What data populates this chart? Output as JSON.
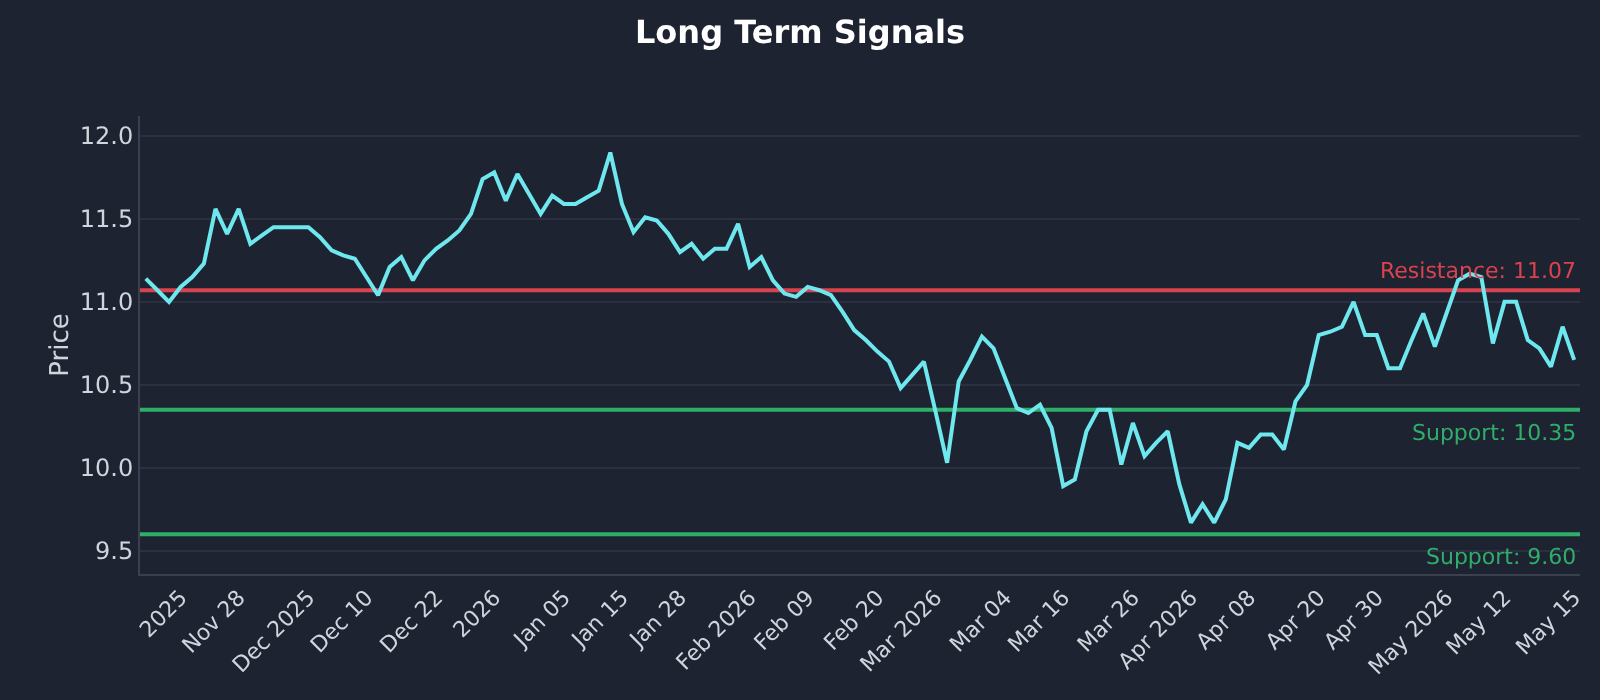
{
  "chart_data": {
    "type": "line",
    "title": "Long Term Signals",
    "ylabel": "Price",
    "categories": [
      null,
      null,
      null,
      "2025",
      null,
      null,
      null,
      null,
      "Nov 28",
      null,
      null,
      null,
      null,
      null,
      "Dec 2025",
      null,
      null,
      null,
      null,
      "Dec 10",
      null,
      null,
      null,
      null,
      null,
      "Dec 22",
      null,
      null,
      null,
      null,
      "2026",
      null,
      null,
      null,
      null,
      null,
      "Jan 05",
      null,
      null,
      null,
      null,
      "Jan 15",
      null,
      null,
      null,
      null,
      "Jan 28",
      null,
      null,
      null,
      null,
      null,
      "Feb 2026",
      null,
      null,
      null,
      null,
      "Feb 09",
      null,
      null,
      null,
      null,
      null,
      "Feb 20",
      null,
      null,
      null,
      null,
      "Mar 2026",
      null,
      null,
      null,
      null,
      null,
      "Mar 04",
      null,
      null,
      null,
      null,
      "Mar 16",
      null,
      null,
      null,
      null,
      null,
      "Mar 26",
      null,
      null,
      null,
      null,
      "Apr 2026",
      null,
      null,
      null,
      null,
      "Apr 08",
      null,
      null,
      null,
      null,
      null,
      "Apr 20",
      null,
      null,
      null,
      null,
      "Apr 30",
      null,
      null,
      null,
      null,
      null,
      "May 2026",
      null,
      null,
      null,
      null,
      "May 12",
      null,
      null,
      null,
      null,
      null,
      "May 15"
    ],
    "series": [
      {
        "color": "#6ee7ee",
        "values": [
          11.14,
          11.07,
          11.0,
          11.09,
          11.15,
          11.23,
          11.56,
          11.41,
          11.56,
          11.35,
          11.4,
          11.45,
          11.45,
          11.45,
          11.45,
          11.39,
          11.31,
          11.28,
          11.26,
          11.15,
          11.04,
          11.21,
          11.27,
          11.13,
          11.25,
          11.32,
          11.37,
          11.43,
          11.53,
          11.74,
          11.78,
          11.61,
          11.77,
          11.65,
          11.53,
          11.64,
          11.59,
          11.59,
          11.63,
          11.67,
          11.9,
          11.59,
          11.42,
          11.51,
          11.49,
          11.41,
          11.3,
          11.35,
          11.26,
          11.32,
          11.32,
          11.47,
          11.21,
          11.27,
          11.13,
          11.05,
          11.03,
          11.09,
          11.07,
          11.04,
          10.94,
          10.83,
          10.77,
          10.7,
          10.64,
          10.48,
          10.56,
          10.64,
          10.34,
          10.03,
          10.52,
          10.65,
          10.79,
          10.72,
          10.54,
          10.36,
          10.33,
          10.38,
          10.24,
          9.89,
          9.93,
          10.22,
          10.35,
          10.35,
          10.02,
          10.27,
          10.07,
          10.15,
          10.22,
          9.9,
          9.67,
          9.78,
          9.67,
          9.81,
          10.15,
          10.12,
          10.2,
          10.2,
          10.11,
          10.4,
          10.5,
          10.8,
          10.82,
          10.85,
          11.0,
          10.8,
          10.8,
          10.6,
          10.6,
          10.77,
          10.93,
          10.73,
          10.93,
          11.13,
          11.17,
          11.15,
          10.75,
          11.0,
          11.0,
          10.77,
          10.72,
          10.61,
          10.85,
          10.65
        ]
      }
    ],
    "ylim": [
      9.36,
      12.12
    ],
    "yticks": [
      {
        "value": 9.5,
        "label": "9.5"
      },
      {
        "value": 10,
        "label": "10.0"
      },
      {
        "value": 10.5,
        "label": "10.5"
      },
      {
        "value": 11,
        "label": "11.0"
      },
      {
        "value": 11.5,
        "label": "11.5"
      },
      {
        "value": 12,
        "label": "12.0"
      }
    ],
    "ref_lines": [
      {
        "axis": "y",
        "value": 11.07,
        "label": "Resistance: 11.07",
        "color": "#d9434f"
      },
      {
        "axis": "y",
        "value": 10.35,
        "label": "Support: 10.35",
        "color": "#2fae6a"
      },
      {
        "axis": "y",
        "value": 9.6,
        "label": "Support: 9.60",
        "color": "#2fae6a"
      }
    ],
    "grid": "y",
    "marker": "none",
    "line_style": "solid"
  }
}
